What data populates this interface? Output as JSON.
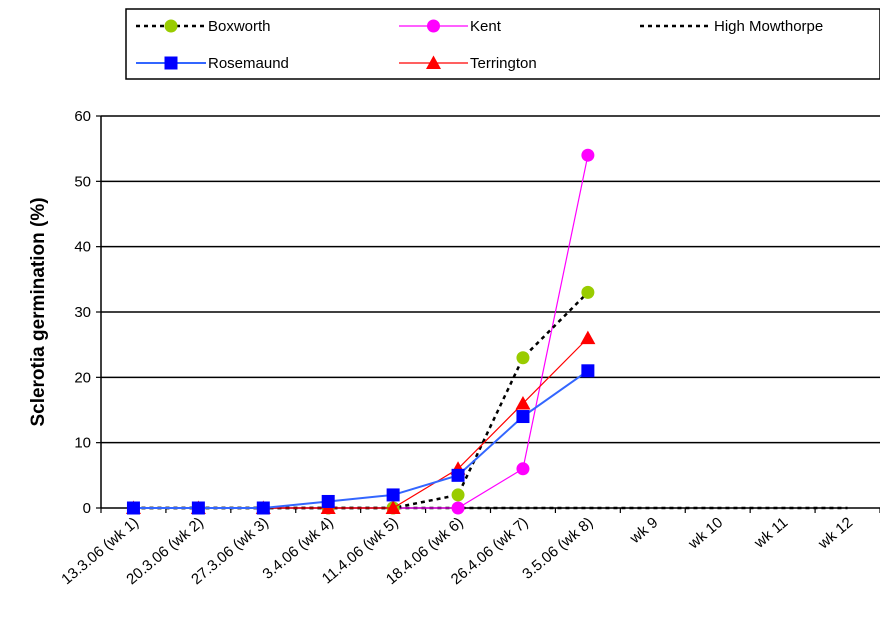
{
  "chart_data": {
    "type": "line",
    "ylabel": "Sclerotia germination (%)",
    "xlabel": "",
    "ylim": [
      0,
      60
    ],
    "yticks": [
      0,
      10,
      20,
      30,
      40,
      50,
      60
    ],
    "grid": "horizontal",
    "legend_position": "top",
    "categories": [
      "13.3.06 (wk 1)",
      "20.3.06 (wk 2)",
      "27.3.06 (wk 3)",
      "3.4.06 (wk 4)",
      "11.4.06 (wk 5)",
      "18.4.06 (wk 6)",
      "26.4.06 (wk 7)",
      "3.5.06 (wk 8)",
      "wk 9",
      "wk 10",
      "wk 11",
      "wk 12"
    ],
    "series": [
      {
        "name": "Boxworth",
        "color": "#99cc00",
        "line_color": "#000000",
        "dash": true,
        "marker": "circle",
        "values": [
          0,
          0,
          0,
          0,
          0,
          2,
          23,
          33,
          null,
          null,
          null,
          null
        ]
      },
      {
        "name": "Kent",
        "color": "#ff00ff",
        "line_color": "#ff00ff",
        "dash": false,
        "marker": "circle",
        "values": [
          0,
          0,
          0,
          0,
          0,
          0,
          6,
          54,
          null,
          null,
          null,
          null
        ]
      },
      {
        "name": "High Mowthorpe",
        "color": "#000000",
        "line_color": "#000000",
        "dash": true,
        "marker": "none",
        "values": [
          0,
          0,
          0,
          0,
          0,
          0,
          0,
          0,
          0,
          0,
          0,
          0
        ]
      },
      {
        "name": "Rosemaund",
        "color": "#0000ff",
        "line_color": "#3366ff",
        "dash": false,
        "marker": "square",
        "values": [
          0,
          0,
          0,
          1,
          2,
          5,
          14,
          21,
          null,
          null,
          null,
          null
        ]
      },
      {
        "name": "Terrington",
        "color": "#ff0000",
        "line_color": "#ff0000",
        "dash": false,
        "marker": "triangle",
        "values": [
          0,
          0,
          0,
          0,
          0,
          6,
          16,
          26,
          null,
          null,
          null,
          null
        ]
      }
    ]
  }
}
